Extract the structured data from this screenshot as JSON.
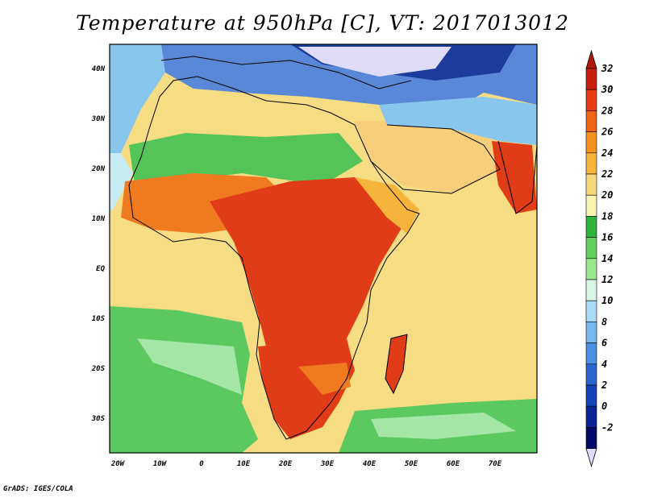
{
  "title": "Temperature at 950hPa [C], VT: 2017013012",
  "footer": "GrADS: IGES/COLA",
  "map": {
    "lon_labels": [
      "20W",
      "10W",
      "0",
      "10E",
      "20E",
      "30E",
      "40E",
      "50E",
      "60E",
      "70E"
    ],
    "lat_labels": [
      "40N",
      "30N",
      "20N",
      "10N",
      "EQ",
      "10S",
      "20S",
      "30S"
    ]
  },
  "colorbar": {
    "labels": [
      "32",
      "30",
      "28",
      "26",
      "24",
      "22",
      "20",
      "18",
      "16",
      "14",
      "12",
      "10",
      "8",
      "6",
      "4",
      "2",
      "0",
      "-2"
    ],
    "colors": [
      "#c81e10",
      "#e83c14",
      "#f06414",
      "#f4921c",
      "#f6b43a",
      "#f8d67a",
      "#f9f2b0",
      "#30b43c",
      "#62d05c",
      "#9ce690",
      "#d8f6e6",
      "#a8daf6",
      "#78b8f0",
      "#4c90e4",
      "#2c64d0",
      "#1444b8",
      "#0a2496",
      "#000a68"
    ],
    "top_arrow_color": "#b01a0c",
    "bottom_arrow_color": "#e0dcf8"
  },
  "palette": {
    "ocean_tropical": "#f6dc82",
    "ocean_subtropical_south": "#5cc860",
    "ocean_south_pale": "#a4e6a6",
    "ocean_north_cool": "#88c6ee",
    "med_cold": "#5a88d8",
    "land_hot": "#e03c18",
    "land_warm": "#f07a20",
    "land_desert": "#f8ce7a",
    "land_green": "#54c458",
    "land_mountain": "#e0dcf8",
    "land_deep_blue": "#1c3c9c"
  }
}
